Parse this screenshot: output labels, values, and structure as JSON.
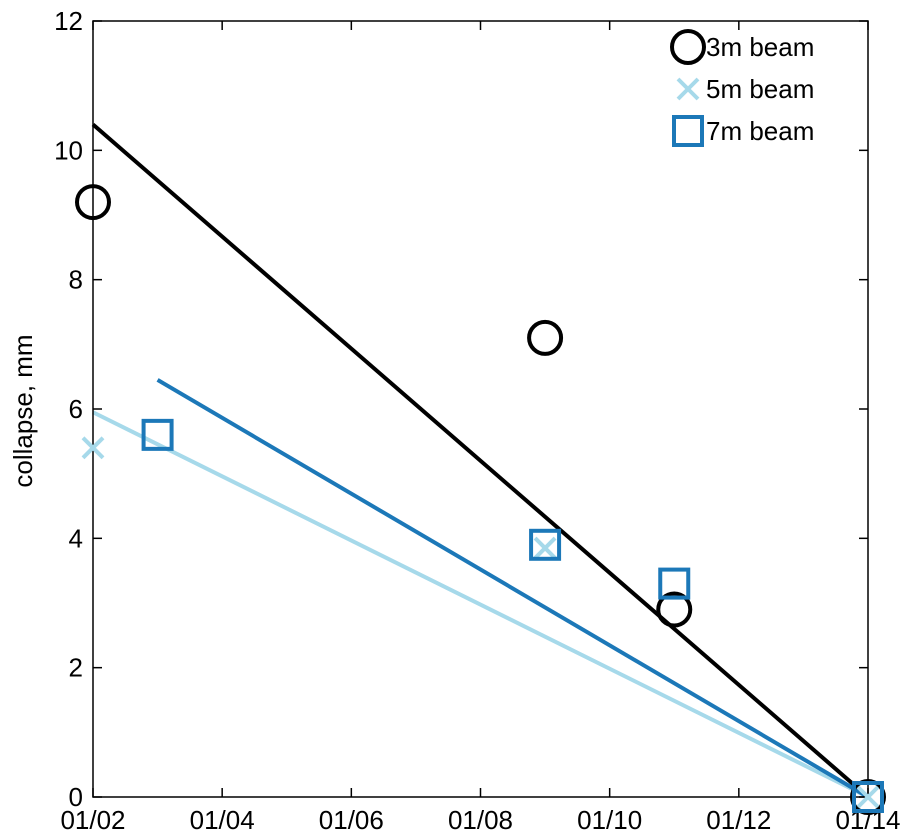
{
  "chart_data": {
    "type": "scatter",
    "title": "",
    "xlabel": "",
    "ylabel": "collapse, mm",
    "xlim": [
      "01/02",
      "01/14"
    ],
    "ylim": [
      0,
      12
    ],
    "x_ticks": [
      "01/02",
      "01/04",
      "01/06",
      "01/08",
      "01/10",
      "01/12",
      "01/14"
    ],
    "y_ticks": [
      0,
      2,
      4,
      6,
      8,
      10,
      12
    ],
    "grid": false,
    "legend_position": "top-right",
    "series": [
      {
        "name": "3m beam",
        "color": "#000000",
        "marker": "circle",
        "points": [
          {
            "x": "01/02",
            "y": 9.2
          },
          {
            "x": "01/09",
            "y": 7.1
          },
          {
            "x": "01/11",
            "y": 2.9
          },
          {
            "x": "01/14",
            "y": 0.0
          }
        ],
        "fit_line": [
          {
            "x": "01/02",
            "y": 10.4
          },
          {
            "x": "01/14",
            "y": 0.0
          }
        ]
      },
      {
        "name": "5m beam",
        "color": "#a6d9ea",
        "marker": "x",
        "points": [
          {
            "x": "01/02",
            "y": 5.4
          },
          {
            "x": "01/09",
            "y": 3.85
          },
          {
            "x": "01/14",
            "y": 0.0
          }
        ],
        "fit_line": [
          {
            "x": "01/02",
            "y": 5.95
          },
          {
            "x": "01/14",
            "y": 0.0
          }
        ]
      },
      {
        "name": "7m beam",
        "color": "#1c78b8",
        "marker": "square",
        "points": [
          {
            "x": "01/03",
            "y": 5.6
          },
          {
            "x": "01/09",
            "y": 3.9
          },
          {
            "x": "01/11",
            "y": 3.3
          },
          {
            "x": "01/14",
            "y": 0.0
          }
        ],
        "fit_line": [
          {
            "x": "01/03",
            "y": 6.45
          },
          {
            "x": "01/14",
            "y": 0.0
          }
        ]
      }
    ]
  }
}
